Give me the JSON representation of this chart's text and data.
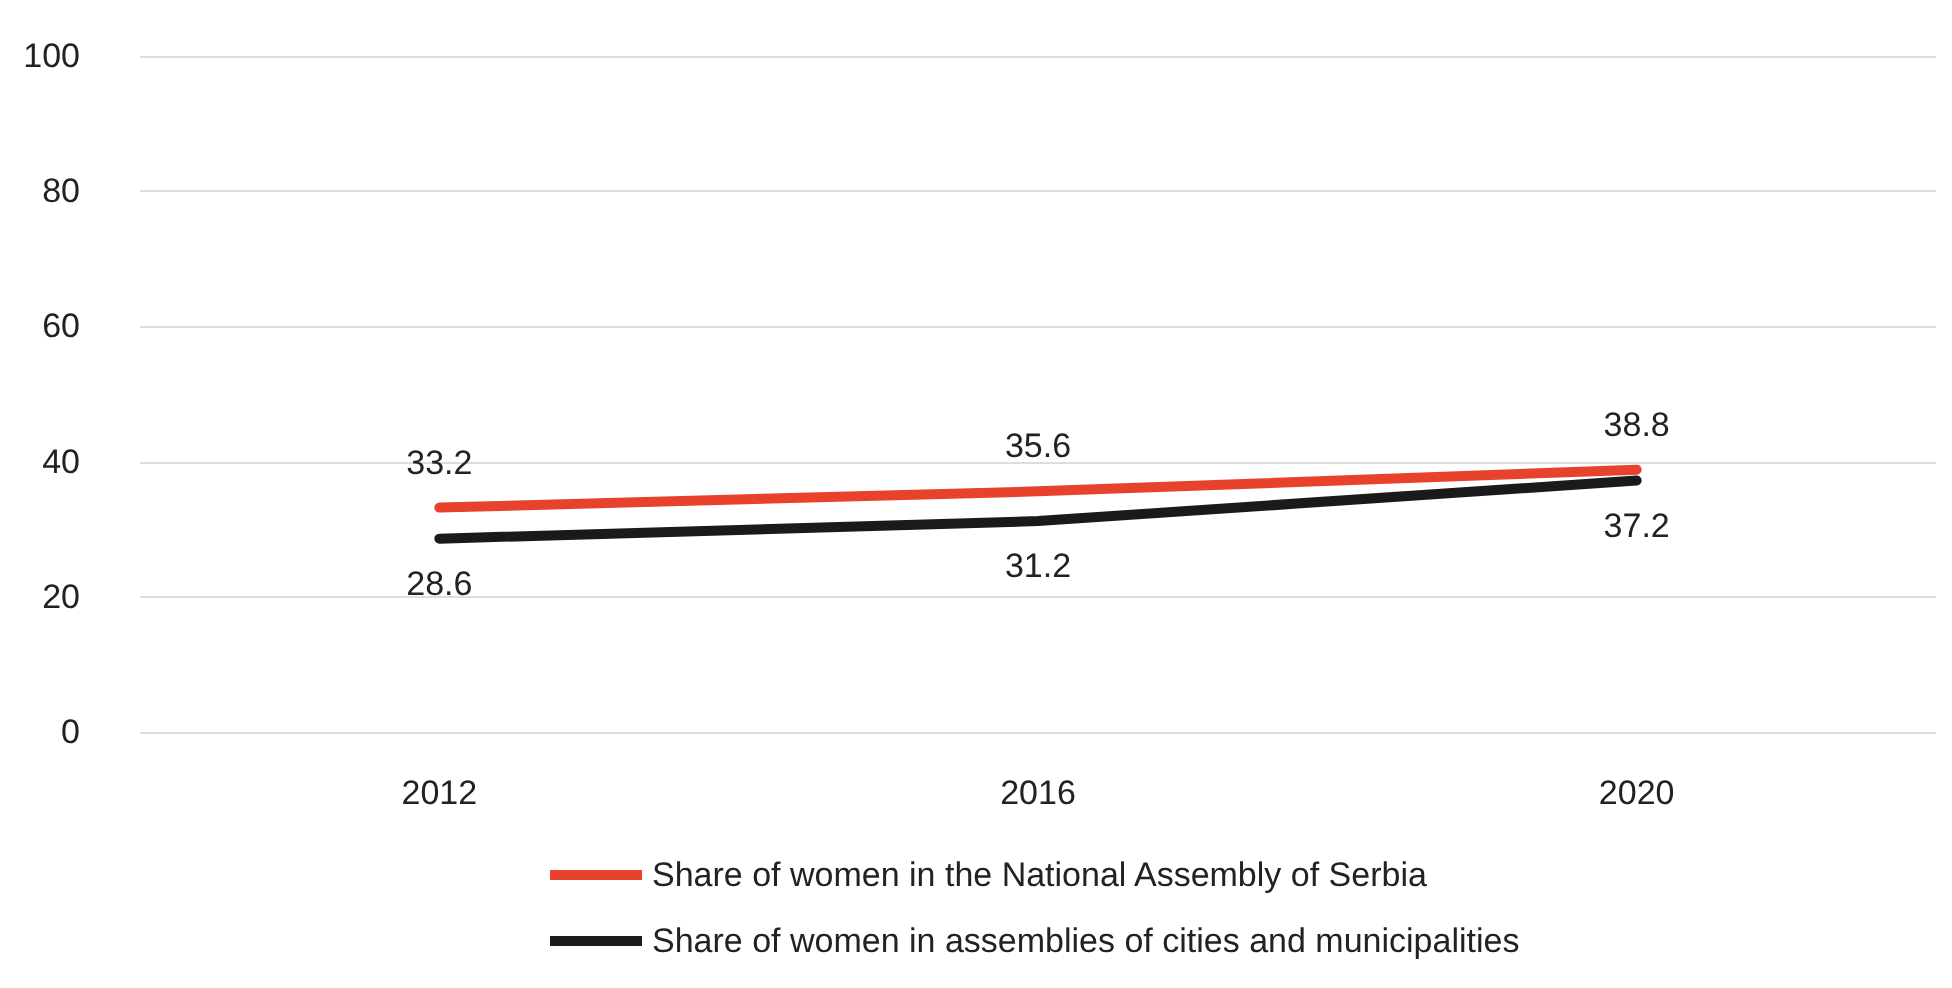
{
  "chart_data": {
    "type": "line",
    "categories": [
      "2012",
      "2016",
      "2020"
    ],
    "series": [
      {
        "name": "Share of women in the National Assembly of Serbia",
        "color": "#e8412c",
        "values": [
          33.2,
          35.6,
          38.8
        ]
      },
      {
        "name": "Share of women in assemblies of cities and municipalities",
        "color": "#1a1a1a",
        "values": [
          28.6,
          31.2,
          37.2
        ]
      }
    ],
    "ylim": [
      0,
      100
    ],
    "yticks": [
      0,
      20,
      40,
      60,
      80,
      100
    ],
    "grid": "y",
    "legend": "bottom",
    "data_labels": true,
    "marker": "none",
    "line_style": "solid"
  }
}
